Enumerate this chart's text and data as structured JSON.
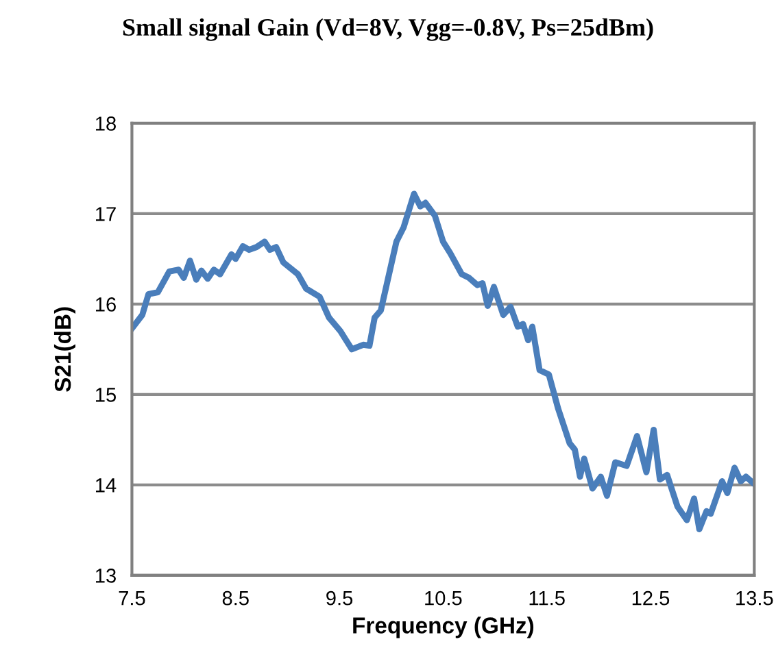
{
  "chart_data": {
    "type": "line",
    "title": "Small signal Gain (Vd=8V, Vgg=-0.8V, Ps=25dBm)",
    "xlabel": "Frequency (GHz)",
    "ylabel": "S21(dB)",
    "xlim": [
      7.5,
      13.5
    ],
    "xticks": [
      7.5,
      8.5,
      9.5,
      10.5,
      11.5,
      12.5,
      13.5
    ],
    "ylim": [
      13,
      18
    ],
    "yticks": [
      13,
      14,
      15,
      16,
      17,
      18
    ],
    "grid": "y",
    "legend": false,
    "marker": "none",
    "line_style": "solid",
    "series": [
      {
        "color": "#4a7ebb",
        "x": [
          7.5,
          7.6,
          7.66,
          7.75,
          7.86,
          7.95,
          8.0,
          8.06,
          8.12,
          8.17,
          8.23,
          8.29,
          8.35,
          8.46,
          8.5,
          8.57,
          8.63,
          8.7,
          8.78,
          8.83,
          8.89,
          8.96,
          9.1,
          9.18,
          9.31,
          9.4,
          9.51,
          9.62,
          9.73,
          9.79,
          9.84,
          9.9,
          10.05,
          10.12,
          10.22,
          10.28,
          10.33,
          10.42,
          10.5,
          10.57,
          10.68,
          10.75,
          10.83,
          10.88,
          10.93,
          10.99,
          11.08,
          11.15,
          11.22,
          11.27,
          11.32,
          11.36,
          11.43,
          11.52,
          11.61,
          11.72,
          11.77,
          11.82,
          11.86,
          11.94,
          12.02,
          12.08,
          12.16,
          12.27,
          12.37,
          12.46,
          12.53,
          12.59,
          12.66,
          12.76,
          12.85,
          12.92,
          12.97,
          13.04,
          13.08,
          13.19,
          13.24,
          13.31,
          13.37,
          13.42,
          13.5
        ],
        "values": [
          15.73,
          15.88,
          16.11,
          16.13,
          16.36,
          16.38,
          16.29,
          16.48,
          16.27,
          16.37,
          16.28,
          16.38,
          16.33,
          16.55,
          16.5,
          16.64,
          16.6,
          16.63,
          16.69,
          16.6,
          16.63,
          16.46,
          16.33,
          16.17,
          16.08,
          15.85,
          15.7,
          15.5,
          15.55,
          15.54,
          15.85,
          15.93,
          16.69,
          16.85,
          17.22,
          17.08,
          17.12,
          16.98,
          16.69,
          16.56,
          16.33,
          16.29,
          16.21,
          16.23,
          15.98,
          16.19,
          15.88,
          15.97,
          15.75,
          15.78,
          15.6,
          15.75,
          15.27,
          15.22,
          14.84,
          14.46,
          14.39,
          14.09,
          14.29,
          13.96,
          14.09,
          13.88,
          14.25,
          14.21,
          14.54,
          14.14,
          14.61,
          14.06,
          14.11,
          13.76,
          13.61,
          13.85,
          13.51,
          13.71,
          13.68,
          14.04,
          13.91,
          14.19,
          14.04,
          14.09,
          14.01
        ]
      }
    ]
  }
}
